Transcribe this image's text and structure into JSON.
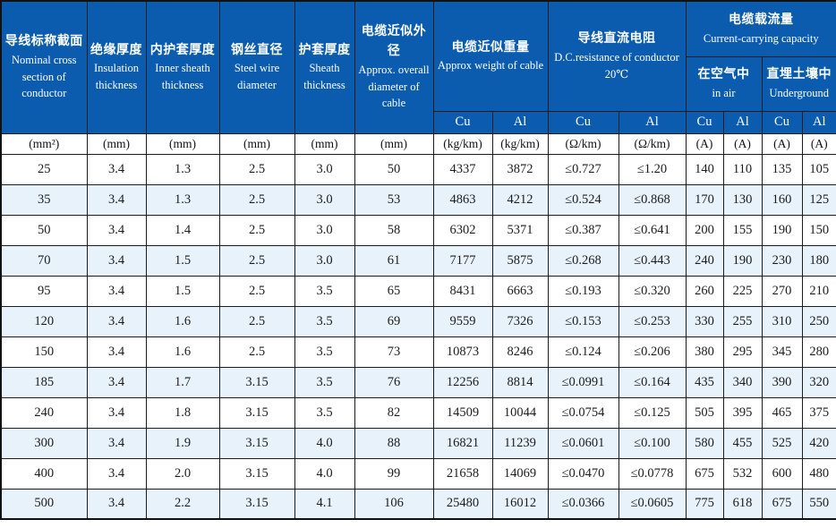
{
  "table": {
    "columns": [
      {
        "zh": "导线标称截面",
        "en": "Nominal cross section of conductor"
      },
      {
        "zh": "绝缘厚度",
        "en": "Insulation thickness"
      },
      {
        "zh": "内护套厚度",
        "en": "Inner sheath thickness"
      },
      {
        "zh": "钢丝直径",
        "en": "Steel wire diameter"
      },
      {
        "zh": "护套厚度",
        "en": "Sheath thickness"
      },
      {
        "zh": "电缆近似外径",
        "en": "Approx. overall diameter of cable"
      }
    ],
    "groups": {
      "weight": {
        "zh": "电缆近似重量",
        "en": "Approx weight of cable"
      },
      "resistance": {
        "zh": "导线直流电阻",
        "en": "D.C.resistance of conductor 20℃"
      },
      "capacity": {
        "zh": "电缆载流量",
        "en": "Current-carrying capacity"
      },
      "in_air": {
        "zh": "在空气中",
        "en": "in air"
      },
      "underground": {
        "zh": "直埋土壤中",
        "en": "Underground"
      }
    },
    "material_labels": {
      "cu": "Cu",
      "al": "Al"
    },
    "units": [
      "(mm²)",
      "(mm)",
      "(mm)",
      "(mm)",
      "(mm)",
      "(mm)",
      "(kg/km)",
      "(kg/km)",
      "(Ω/km)",
      "(Ω/km)",
      "(A)",
      "(A)",
      "(A)",
      "(A)"
    ],
    "rows": [
      [
        "25",
        "3.4",
        "1.3",
        "2.5",
        "3.0",
        "50",
        "4337",
        "3872",
        "≤0.727",
        "≤1.20",
        "140",
        "110",
        "135",
        "105"
      ],
      [
        "35",
        "3.4",
        "1.3",
        "2.5",
        "3.0",
        "53",
        "4863",
        "4212",
        "≤0.524",
        "≤0.868",
        "170",
        "130",
        "160",
        "125"
      ],
      [
        "50",
        "3.4",
        "1.4",
        "2.5",
        "3.0",
        "58",
        "6302",
        "5371",
        "≤0.387",
        "≤0.641",
        "200",
        "155",
        "190",
        "150"
      ],
      [
        "70",
        "3.4",
        "1.5",
        "2.5",
        "3.0",
        "61",
        "7177",
        "5875",
        "≤0.268",
        "≤0.443",
        "240",
        "190",
        "230",
        "180"
      ],
      [
        "95",
        "3.4",
        "1.5",
        "2.5",
        "3.5",
        "65",
        "8431",
        "6663",
        "≤0.193",
        "≤0.320",
        "260",
        "225",
        "270",
        "210"
      ],
      [
        "120",
        "3.4",
        "1.6",
        "2.5",
        "3.5",
        "69",
        "9559",
        "7326",
        "≤0.153",
        "≤0.253",
        "330",
        "255",
        "310",
        "250"
      ],
      [
        "150",
        "3.4",
        "1.6",
        "2.5",
        "3.5",
        "73",
        "10873",
        "8246",
        "≤0.124",
        "≤0.206",
        "380",
        "295",
        "345",
        "280"
      ],
      [
        "185",
        "3.4",
        "1.7",
        "3.15",
        "3.5",
        "76",
        "12256",
        "8814",
        "≤0.0991",
        "≤0.164",
        "435",
        "340",
        "390",
        "320"
      ],
      [
        "240",
        "3.4",
        "1.8",
        "3.15",
        "3.5",
        "82",
        "14509",
        "10044",
        "≤0.0754",
        "≤0.125",
        "505",
        "395",
        "465",
        "375"
      ],
      [
        "300",
        "3.4",
        "1.9",
        "3.15",
        "4.0",
        "88",
        "16821",
        "11239",
        "≤0.0601",
        "≤0.100",
        "580",
        "455",
        "525",
        "420"
      ],
      [
        "400",
        "3.4",
        "2.0",
        "3.15",
        "4.0",
        "99",
        "21658",
        "14069",
        "≤0.0470",
        "≤0.0778",
        "675",
        "532",
        "600",
        "480"
      ],
      [
        "500",
        "3.4",
        "2.2",
        "3.15",
        "4.1",
        "106",
        "25480",
        "16012",
        "≤0.0366",
        "≤0.0605",
        "775",
        "618",
        "675",
        "550"
      ]
    ]
  },
  "colors": {
    "header_bg": "#0b5caf",
    "header_text": "#ffffff",
    "row_alt_bg": "#e7f2fb",
    "row_bg": "#ffffff",
    "border": "#1c1c1c",
    "data_text": "#1c1c1c"
  }
}
